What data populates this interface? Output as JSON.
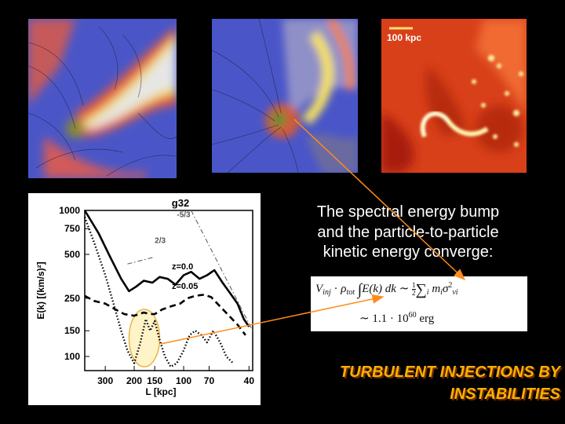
{
  "slide": {
    "scale_label": "100 kpc",
    "caption_lines": [
      "The spectral energy bump",
      "and the particle-to-particle",
      "kinetic energy converge:"
    ],
    "title_lines": [
      "TURBULENT INJECTIONS BY",
      "INSTABILITIES"
    ],
    "formula": {
      "line1_lhs": "V",
      "line1_lhs_sub": "inj",
      "line1_dot": " · ",
      "line1_rho": "ρ",
      "line1_rho_sub": "tot",
      "line1_int": "∫",
      "line1_integrand": "E(k) dk",
      "line1_sim": " ∼ ",
      "line1_frac_num": "1",
      "line1_frac_den": "2",
      "line1_sum": "∑",
      "line1_sum_sub": "i",
      "line1_mass": " m",
      "line1_mass_sub": "i",
      "line1_sigma": "σ",
      "line1_sigma_sup": "2",
      "line1_sigma_sub": "vi",
      "line2_prefix": "∼ 1.1 · 10",
      "line2_exp": "60",
      "line2_unit": " erg"
    },
    "colors": {
      "title": "#ffb000",
      "arrow": "#ff8c1a",
      "background": "#000000"
    }
  },
  "chart_data": {
    "type": "line",
    "title": "g32",
    "xlabel": "L [kpc]",
    "ylabel": "E(k) [(km/s)²]",
    "x_scale": "log",
    "y_scale": "log",
    "xlim": [
      400,
      38
    ],
    "ylim": [
      80,
      1000
    ],
    "xticks": [
      300,
      200,
      150,
      100,
      70,
      40
    ],
    "yticks": [
      1000,
      750,
      500,
      250,
      150,
      100
    ],
    "annotations": [
      "2/3",
      "-5/3",
      "z=0.0",
      "z=0.05"
    ],
    "series": [
      {
        "name": "z=0.0",
        "style": "solid",
        "x": [
          400,
          330,
          280,
          240,
          215,
          195,
          175,
          155,
          140,
          125,
          112,
          100,
          90,
          80,
          72,
          65,
          58,
          52,
          47,
          43,
          40
        ],
        "y": [
          1000,
          700,
          480,
          340,
          280,
          300,
          330,
          320,
          350,
          340,
          310,
          360,
          380,
          340,
          360,
          390,
          320,
          270,
          230,
          180,
          160
        ]
      },
      {
        "name": "z=0.05",
        "style": "dashed",
        "x": [
          400,
          350,
          300,
          260,
          230,
          200,
          175,
          160,
          150,
          135,
          120,
          105,
          95,
          85,
          75,
          68,
          60,
          53,
          47,
          42
        ],
        "y": [
          260,
          240,
          230,
          210,
          195,
          190,
          200,
          195,
          195,
          210,
          220,
          230,
          250,
          260,
          265,
          255,
          220,
          190,
          165,
          140
        ]
      },
      {
        "name": "",
        "style": "dotted",
        "x": [
          400,
          350,
          300,
          270,
          240,
          220,
          200,
          185,
          170,
          160,
          150,
          140,
          130,
          120,
          110,
          100,
          92,
          85,
          78,
          72,
          66,
          60,
          55,
          50
        ],
        "y": [
          900,
          600,
          360,
          240,
          150,
          110,
          90,
          120,
          180,
          150,
          175,
          130,
          100,
          85,
          90,
          110,
          140,
          150,
          140,
          125,
          150,
          125,
          100,
          90
        ]
      },
      {
        "name": "2/3",
        "style": "dashdot",
        "x": [
          220,
          150
        ],
        "y": [
          430,
          480
        ]
      },
      {
        "name": "-5/3",
        "style": "dashdot",
        "x": [
          90,
          38
        ],
        "y": [
          1000,
          150
        ]
      }
    ],
    "highlight": {
      "label": "",
      "x_range": [
        215,
        140
      ],
      "y_range": [
        85,
        210
      ]
    },
    "grid": false,
    "legend": "none"
  }
}
